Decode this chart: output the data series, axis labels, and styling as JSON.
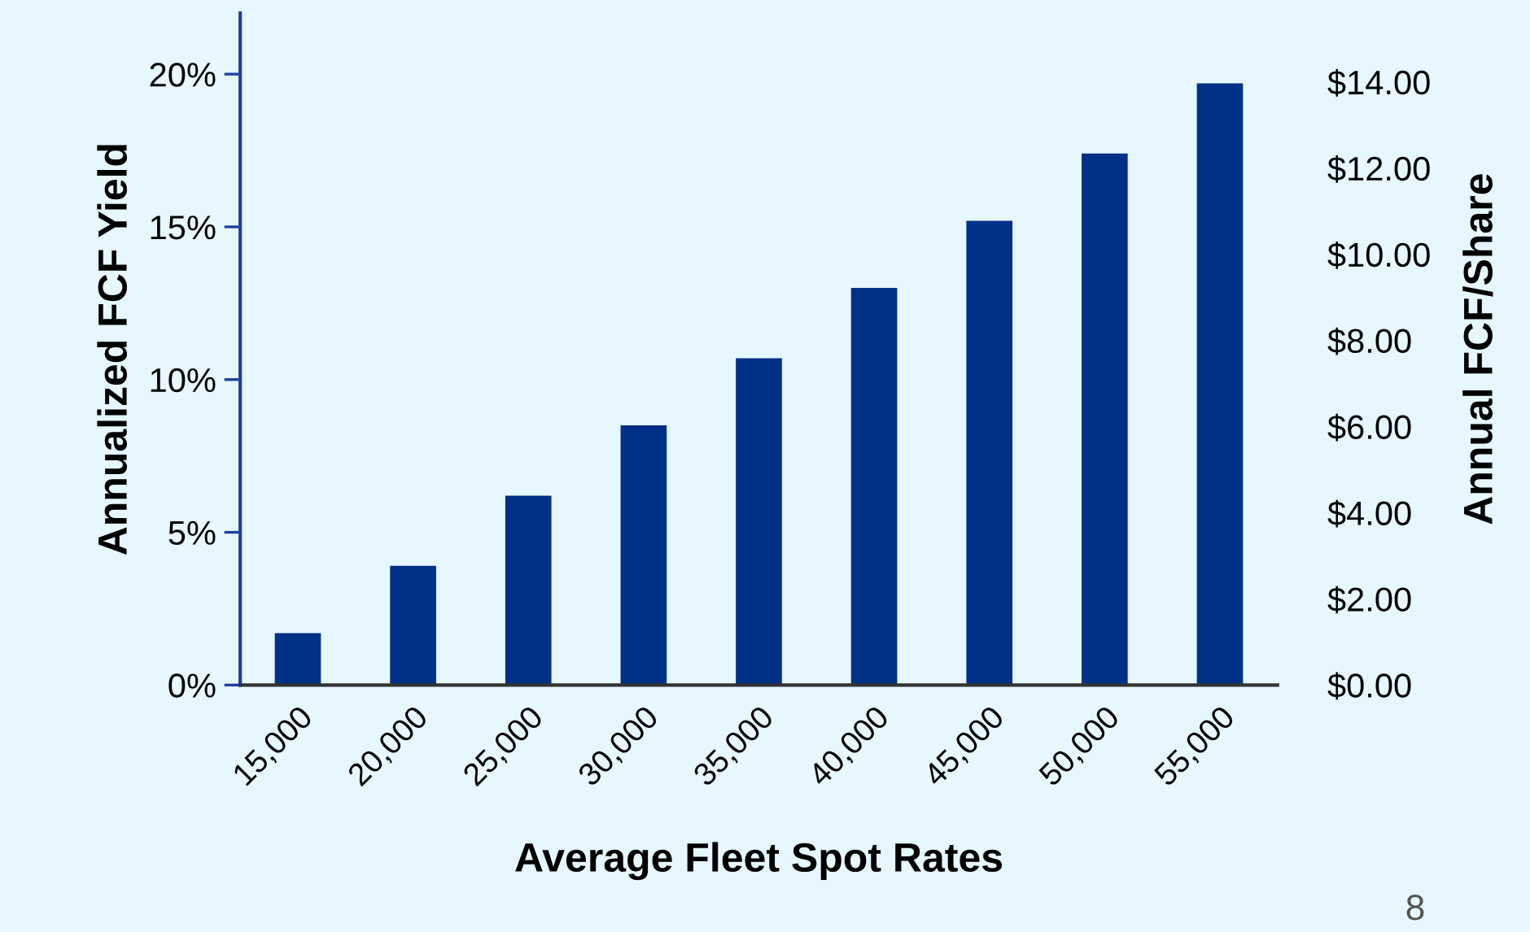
{
  "chart_data": {
    "type": "bar",
    "xlabel": "Average Fleet Spot Rates",
    "ylabel": "Annualized FCF Yield",
    "y2label": "Annual FCF/Share",
    "categories": [
      "15,000",
      "20,000",
      "25,000",
      "30,000",
      "35,000",
      "40,000",
      "45,000",
      "50,000",
      "55,000"
    ],
    "series": [
      {
        "color": "#003087",
        "values": [
          1.7,
          3.9,
          6.2,
          8.5,
          10.7,
          13.0,
          15.2,
          17.4,
          19.7
        ]
      }
    ],
    "ylim": [
      0,
      22
    ],
    "yticks": [
      {
        "value": 0,
        "label": "0%"
      },
      {
        "value": 5,
        "label": "5%"
      },
      {
        "value": 10,
        "label": "10%"
      },
      {
        "value": 15,
        "label": "15%"
      },
      {
        "value": 20,
        "label": "20%"
      }
    ],
    "y2lim": [
      0,
      15.6
    ],
    "y2ticks": [
      {
        "value": 0,
        "label": "$0.00"
      },
      {
        "value": 2,
        "label": "$2.00"
      },
      {
        "value": 4,
        "label": "$4.00"
      },
      {
        "value": 6,
        "label": "$6.00"
      },
      {
        "value": 8,
        "label": "$8.00"
      },
      {
        "value": 10,
        "label": "$10.00"
      },
      {
        "value": 12,
        "label": "$12.00"
      },
      {
        "value": 14,
        "label": "$14.00"
      }
    ],
    "annotations": [
      "8"
    ],
    "grid": false,
    "legend": false
  }
}
